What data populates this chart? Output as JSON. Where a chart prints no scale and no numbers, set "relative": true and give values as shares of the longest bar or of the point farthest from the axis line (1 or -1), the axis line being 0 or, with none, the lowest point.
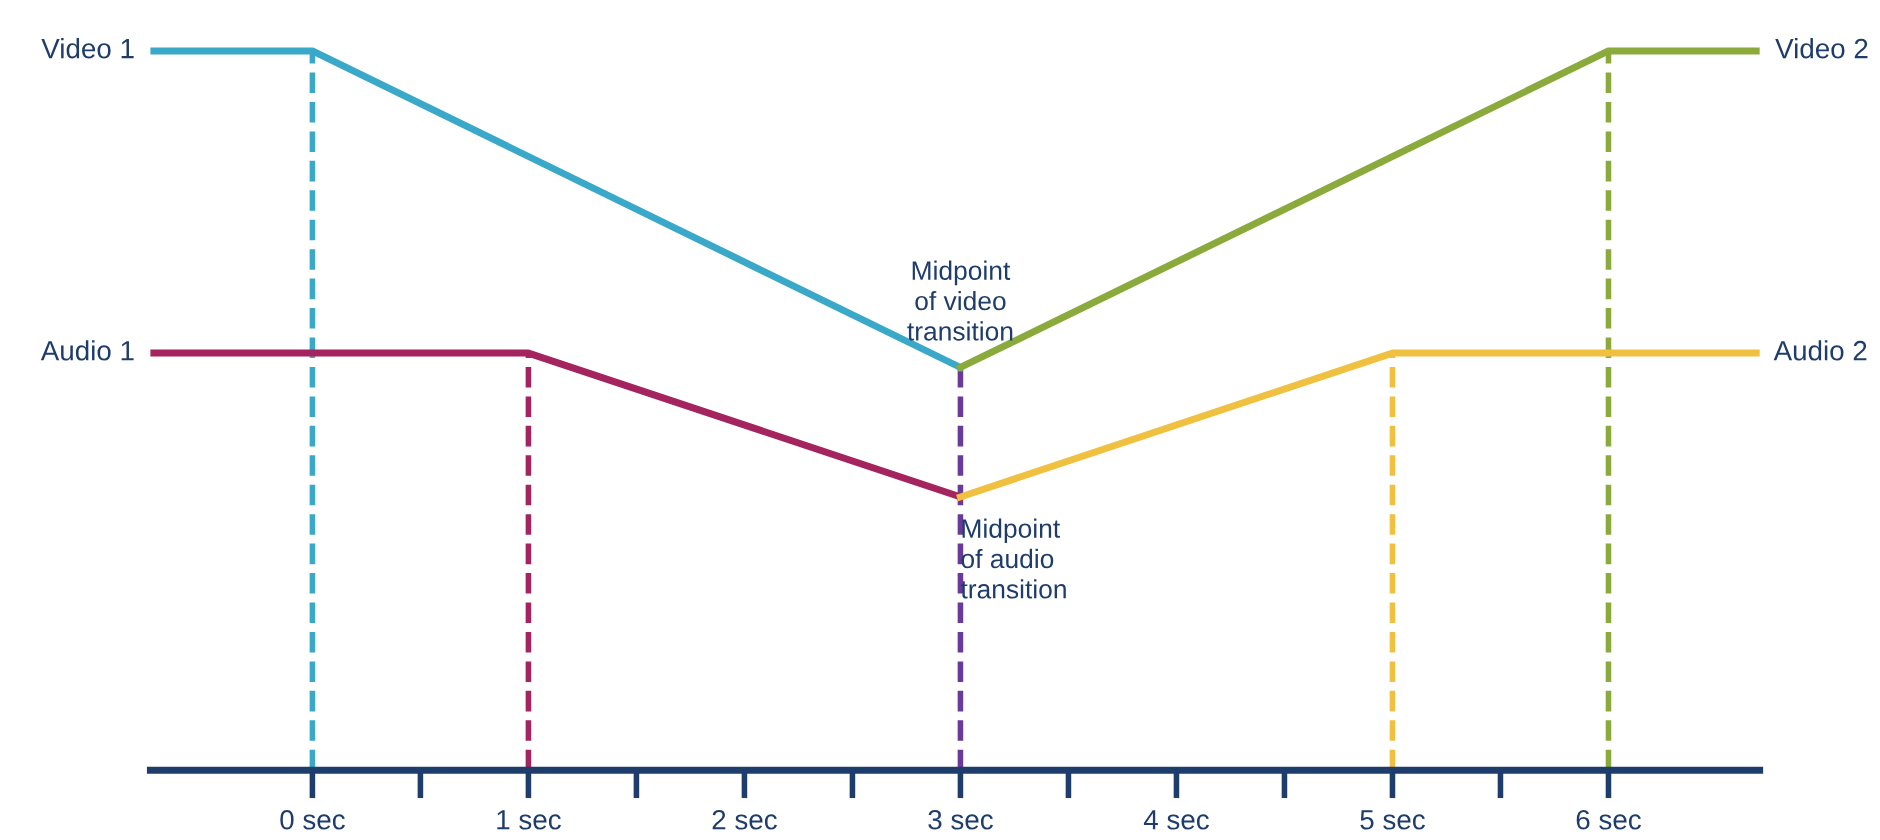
{
  "chart_data": {
    "type": "line",
    "relative": true,
    "xlim": [
      -0.75,
      6.7
    ],
    "xticks": [
      {
        "value": 0,
        "label": "0 sec"
      },
      {
        "value": 0.5,
        "label": null
      },
      {
        "value": 1,
        "label": "1 sec"
      },
      {
        "value": 1.5,
        "label": null
      },
      {
        "value": 2,
        "label": "2 sec"
      },
      {
        "value": 2.5,
        "label": null
      },
      {
        "value": 3,
        "label": "3 sec"
      },
      {
        "value": 3.5,
        "label": null
      },
      {
        "value": 4,
        "label": "4 sec"
      },
      {
        "value": 4.5,
        "label": null
      },
      {
        "value": 5,
        "label": "5 sec"
      },
      {
        "value": 5.5,
        "label": null
      },
      {
        "value": 6,
        "label": "6 sec"
      }
    ],
    "series": [
      {
        "name": "Video 1",
        "color": "#3aa8c8",
        "x": [
          -0.75,
          0,
          3
        ],
        "values": [
          1.0,
          1.0,
          0.56
        ]
      },
      {
        "name": "Audio 1",
        "color": "#a3245e",
        "x": [
          -0.75,
          1,
          3
        ],
        "values": [
          0.58,
          0.58,
          0.38
        ]
      },
      {
        "name": "Video 2",
        "color": "#8aaa3c",
        "x": [
          3,
          6,
          6.7
        ],
        "values": [
          0.56,
          1.0,
          1.0
        ]
      },
      {
        "name": "Audio 2",
        "color": "#f0c040",
        "x": [
          3,
          5,
          6.7
        ],
        "values": [
          0.38,
          0.58,
          0.58
        ]
      }
    ],
    "ref_lines": [
      {
        "axis": "x",
        "value": 0,
        "color": "#3aa8c8",
        "line_style": "dashed"
      },
      {
        "axis": "x",
        "value": 1,
        "color": "#a3245e",
        "line_style": "dashed"
      },
      {
        "axis": "x",
        "value": 3,
        "color": "#6a3a9a",
        "line_style": "dashed"
      },
      {
        "axis": "x",
        "value": 5,
        "color": "#f0c040",
        "line_style": "dashed"
      },
      {
        "axis": "x",
        "value": 6,
        "color": "#8aaa3c",
        "line_style": "dashed"
      }
    ],
    "annotations": [
      {
        "text": "Midpoint\nof video\ntransition",
        "x": 3,
        "y": 0.56
      },
      {
        "text": "Midpoint\nof audio\ntransition",
        "x": 3,
        "y": 0.38
      }
    ],
    "line_style": "solid",
    "marker": "none",
    "grid": false,
    "legend": false
  }
}
